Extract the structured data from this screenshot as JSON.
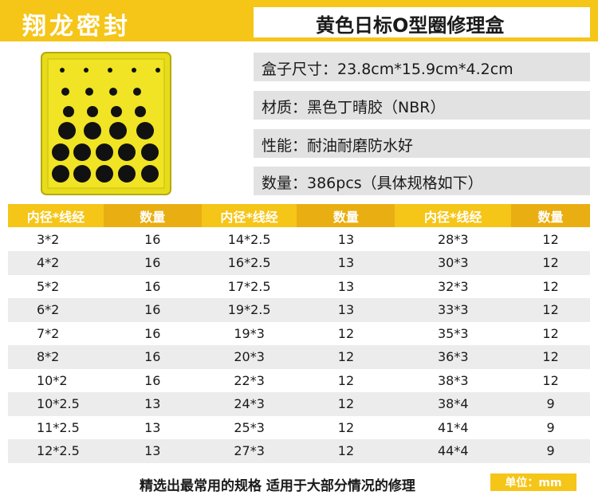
{
  "brand": "翔龙密封",
  "title": "黄色日标O型圈修理盒",
  "specs": [
    "盒子尺寸：23.8cm*15.9cm*4.2cm",
    "材质：黑色丁晴胶（NBR）",
    "性能：耐油耐磨防水好",
    "数量：386pcs（具体规格如下）"
  ],
  "table": {
    "headers": [
      "内径*线经",
      "数量",
      "内径*线经",
      "数量",
      "内径*线经",
      "数量"
    ],
    "rows": [
      [
        "3*2",
        "16",
        "14*2.5",
        "13",
        "28*3",
        "12"
      ],
      [
        "4*2",
        "16",
        "16*2.5",
        "13",
        "30*3",
        "12"
      ],
      [
        "5*2",
        "16",
        "17*2.5",
        "13",
        "32*3",
        "12"
      ],
      [
        "6*2",
        "16",
        "19*2.5",
        "13",
        "33*3",
        "12"
      ],
      [
        "7*2",
        "16",
        "19*3",
        "12",
        "35*3",
        "12"
      ],
      [
        "8*2",
        "16",
        "20*3",
        "12",
        "36*3",
        "12"
      ],
      [
        "10*2",
        "16",
        "22*3",
        "12",
        "38*3",
        "12"
      ],
      [
        "10*2.5",
        "13",
        "24*3",
        "12",
        "38*4",
        "9"
      ],
      [
        "11*2.5",
        "13",
        "25*3",
        "12",
        "41*4",
        "9"
      ],
      [
        "12*2.5",
        "13",
        "27*3",
        "12",
        "44*4",
        "9"
      ]
    ]
  },
  "footer": {
    "note": "精选出最常用的规格 适用于大部分情况的修理",
    "unit": "单位：mm"
  },
  "colors": {
    "accent": "#f5c518",
    "accent_dark": "#e9ae12",
    "row_alt": "#ececec"
  },
  "icons": {
    "product_photo": "yellow-oring-kit-box"
  }
}
